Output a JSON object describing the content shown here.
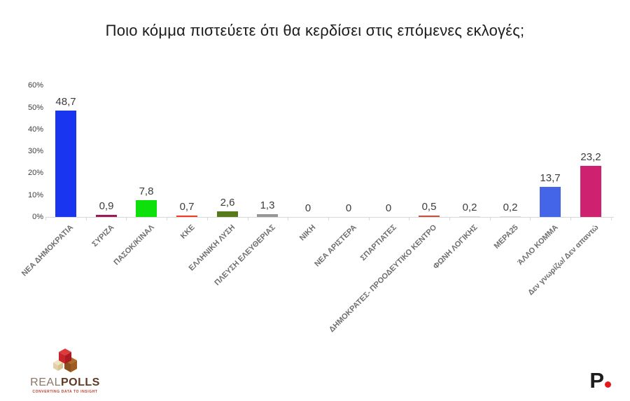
{
  "title": "Ποιο κόμμα πιστεύετε ότι θα κερδίσει στις επόμενες εκλογές;",
  "chart_data": {
    "type": "bar",
    "title": "Ποιο κόμμα πιστεύετε ότι θα κερδίσει στις επόμενες εκλογές;",
    "categories": [
      "ΝΕΑ ΔΗΜΟΚΡΑΤΙΑ",
      "ΣΥΡΙΖΑ",
      "ΠΑΣΟΚ/ΚΙΝΑΛ",
      "ΚΚΕ",
      "ΕΛΛΗΝΙΚΗ ΛΥΣΗ",
      "ΠΛΕΥΣΗ ΕΛΕΥΘΕΡΙΑΣ",
      "ΝΙΚΗ",
      "ΝΕΑ ΑΡΙΣΤΕΡΑ",
      "ΣΠΑΡΤΙΑΤΕΣ",
      "ΔΗΜΟΚΡΑΤΕΣ- ΠΡΟΟΔΕΥΤΙΚΟ ΚΕΝΤΡΟ",
      "ΦΩΝΗ ΛΟΓΙΚΗΣ",
      "ΜΕΡΑ25",
      "ΆΛΛΟ ΚΟΜΜΑ",
      "Δεν γνωρίζω/ Δεν απαντώ"
    ],
    "values": [
      48.7,
      0.9,
      7.8,
      0.7,
      2.6,
      1.3,
      0,
      0,
      0,
      0.5,
      0.2,
      0.2,
      13.7,
      23.2
    ],
    "value_labels": [
      "48,7",
      "0,9",
      "7,8",
      "0,7",
      "2,6",
      "1,3",
      "0",
      "0",
      "0",
      "0,5",
      "0,2",
      "0,2",
      "13,7",
      "23,2"
    ],
    "bar_colors": [
      "#1a35f0",
      "#9a1a5c",
      "#0ee00c",
      "#f23b22",
      "#55791b",
      "#969696",
      "#ffffff",
      "#ffffff",
      "#ffffff",
      "#c8523d",
      "#d8dce4",
      "#dcdcdc",
      "#4465e8",
      "#ce2170"
    ],
    "xlabel": "",
    "ylabel": "",
    "ylim": [
      0,
      60
    ],
    "yticks": [
      "0%",
      "10%",
      "20%",
      "30%",
      "40%",
      "50%",
      "60%"
    ],
    "grid": false,
    "legend": null
  },
  "footer": {
    "realpolls": {
      "brand_light": "REAL",
      "brand_bold": "POLLS",
      "tagline": "CONVERTING DATA TO INSIGHT"
    },
    "publisher": {
      "letter": "P"
    }
  },
  "colors": {
    "background": "#ffffff",
    "axis": "#d8d8d8",
    "value_label": "#3c3c3c",
    "category_label": "#6e6e6e",
    "publisher_dot": "#e8191c",
    "realpolls_red": "#c9242b",
    "realpolls_brown": "#9c5a24",
    "realpolls_cream": "#e9dab2"
  }
}
